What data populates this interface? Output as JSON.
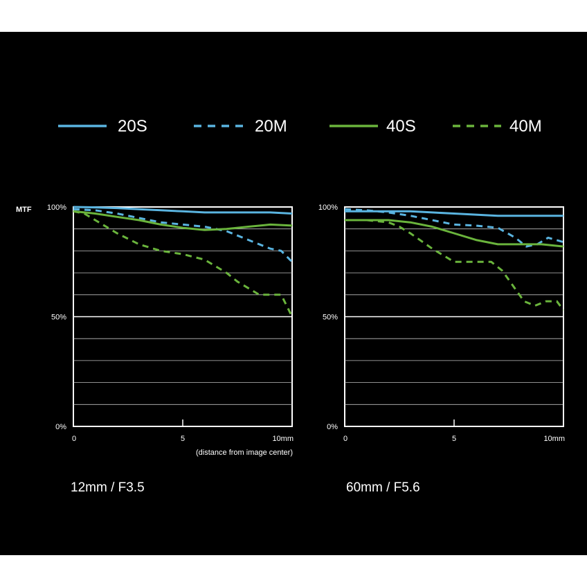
{
  "legend": [
    {
      "label": "20S",
      "color": "#5ab4e0",
      "dash": "solid"
    },
    {
      "label": "20M",
      "color": "#5ab4e0",
      "dash": "dashed"
    },
    {
      "label": "40S",
      "color": "#6ab43c",
      "dash": "solid"
    },
    {
      "label": "40M",
      "color": "#6ab43c",
      "dash": "dashed"
    }
  ],
  "y_axis_title": "MTF",
  "x_note": "(distance from image center)",
  "chart_data": [
    {
      "type": "line",
      "title": "12mm / F3.5",
      "xlim": [
        0,
        10
      ],
      "ylim": [
        0,
        100
      ],
      "y_ticks": [
        "100%",
        "50%",
        "0%"
      ],
      "x_ticks": [
        "0",
        "5",
        "10mm"
      ],
      "grid": true,
      "series": [
        {
          "name": "20S",
          "x": [
            0,
            1,
            2,
            3,
            4,
            5,
            6,
            7,
            8,
            9,
            10
          ],
          "values": [
            100,
            99.8,
            99.5,
            99,
            98.5,
            98,
            97.5,
            97.5,
            97.5,
            97.5,
            97
          ]
        },
        {
          "name": "20M",
          "x": [
            0,
            1,
            2,
            3,
            4,
            5,
            6,
            7,
            8,
            9,
            9.5,
            10
          ],
          "values": [
            99,
            98.5,
            97,
            95,
            93,
            92,
            91,
            89,
            85,
            81,
            80,
            75
          ]
        },
        {
          "name": "40S",
          "x": [
            0,
            1,
            2,
            3,
            4,
            5,
            6,
            7,
            8,
            9,
            10
          ],
          "values": [
            98,
            97,
            95.5,
            94,
            92,
            90.5,
            89.5,
            90,
            91,
            92,
            91.5
          ]
        },
        {
          "name": "40M",
          "x": [
            0,
            0.5,
            1,
            2,
            3,
            4,
            5,
            6,
            7,
            7.5,
            8,
            8.5,
            9,
            9.5,
            10
          ],
          "values": [
            98,
            97,
            94,
            88,
            83,
            80,
            78.5,
            76,
            70,
            66,
            63,
            60,
            60,
            60,
            50
          ]
        }
      ]
    },
    {
      "type": "line",
      "title": "60mm / F5.6",
      "xlim": [
        0,
        10
      ],
      "ylim": [
        0,
        100
      ],
      "y_ticks": [
        "100%",
        "50%",
        "0%"
      ],
      "x_ticks": [
        "0",
        "5",
        "10mm"
      ],
      "grid": true,
      "series": [
        {
          "name": "20S",
          "x": [
            0,
            1,
            2,
            3,
            4,
            5,
            6,
            7,
            8,
            9,
            10
          ],
          "values": [
            98,
            98,
            98,
            98,
            97.5,
            97,
            96.5,
            96,
            96,
            96,
            96
          ]
        },
        {
          "name": "20M",
          "x": [
            0,
            1,
            2,
            3,
            4,
            5,
            6,
            7,
            7.8,
            8.3,
            8.8,
            9.3,
            10
          ],
          "values": [
            99,
            98.5,
            97.5,
            96,
            94,
            92,
            91.5,
            90.5,
            86,
            82,
            83,
            86,
            84
          ]
        },
        {
          "name": "40S",
          "x": [
            0,
            1,
            2,
            3,
            4,
            5,
            6,
            7,
            8,
            9,
            10
          ],
          "values": [
            94,
            94,
            94,
            93,
            91,
            88,
            85,
            83,
            83,
            83,
            82
          ]
        },
        {
          "name": "40M",
          "x": [
            0,
            1,
            2,
            2.5,
            3,
            4,
            5,
            6,
            6.7,
            7.2,
            7.7,
            8.2,
            8.7,
            9.2,
            9.7,
            10
          ],
          "values": [
            94,
            94,
            93,
            91,
            88,
            81,
            75,
            75,
            75,
            71,
            64,
            57,
            55,
            57,
            57,
            53
          ]
        }
      ]
    }
  ]
}
